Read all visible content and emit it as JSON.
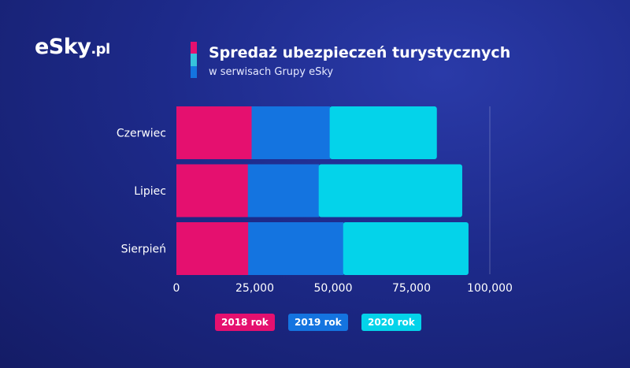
{
  "brand": {
    "logo_main": "eSky",
    "logo_tld": ".pl"
  },
  "colors": {
    "c2018": "#e5106f",
    "c2019": "#1474e0",
    "c2020": "#04d3ea",
    "marker_mid": "#36c2dc"
  },
  "chart_data": {
    "type": "bar",
    "orientation": "horizontal",
    "stacked": true,
    "title": "Spredaż ubezpieczeń turystycznych",
    "subtitle": "w serwisach Grupy eSky",
    "categories": [
      "Czerwiec",
      "Lipiec",
      "Sierpień"
    ],
    "series": [
      {
        "name": "2018 rok",
        "color": "#e5106f",
        "values": [
          24000,
          22800,
          22900
        ]
      },
      {
        "name": "2019 rok",
        "color": "#1474e0",
        "values": [
          24900,
          22600,
          30300
        ]
      },
      {
        "name": "2020 rok",
        "color": "#04d3ea",
        "values": [
          34200,
          45800,
          40000
        ]
      }
    ],
    "xlim": [
      0,
      100000
    ],
    "xticks": [
      0,
      25000,
      50000,
      75000,
      100000
    ],
    "xtick_labels": [
      "0",
      "25,000",
      "50,000",
      "75,000",
      "100,000"
    ],
    "legend_position": "bottom"
  }
}
